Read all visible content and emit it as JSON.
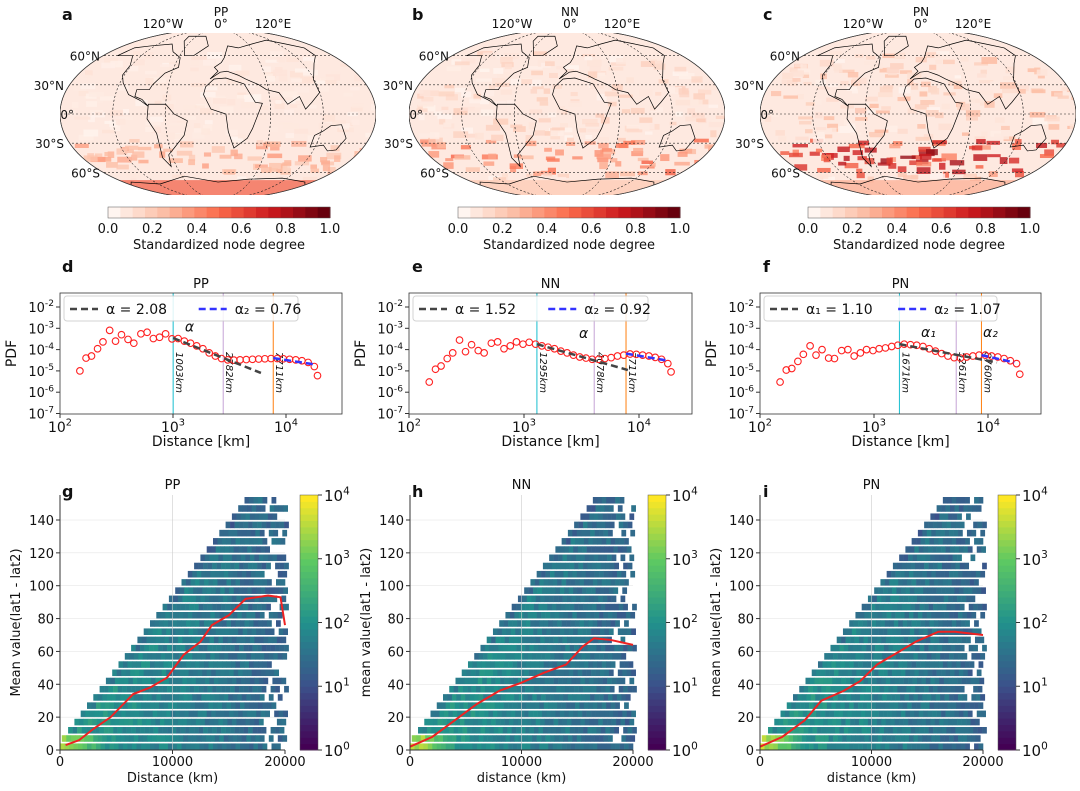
{
  "panel_letters": [
    "a",
    "b",
    "c",
    "d",
    "e",
    "f",
    "g",
    "h",
    "i"
  ],
  "maps": [
    {
      "title": "PP",
      "intensity": 0.15,
      "southern_band": 0.25,
      "antarctic": 0.55
    },
    {
      "title": "NN",
      "intensity": 0.3,
      "southern_band": 0.35,
      "antarctic": 0.2
    },
    {
      "title": "PN",
      "intensity": 0.45,
      "southern_band": 0.6,
      "antarctic": 0.3
    }
  ],
  "map_labels": {
    "lon": [
      "120°W",
      "0°",
      "120°E"
    ],
    "lat": [
      "60°N",
      "30°N",
      "0°",
      "30°S",
      "60°S"
    ],
    "colorbar_ticks": [
      "0.0",
      "0.2",
      "0.4",
      "0.6",
      "0.8",
      "1.0"
    ],
    "colorbar_label": "Standardized node degree",
    "colormap": "Reds"
  },
  "chart_data": [
    {
      "type": "scatter",
      "title": "PP",
      "xlabel": "Distance [km]",
      "ylabel": "PDF",
      "xscale": "log",
      "yscale": "log",
      "xlim": [
        100,
        31623
      ],
      "ylim": [
        1e-07,
        0.045
      ],
      "xticks": [
        "10^2",
        "10^3",
        "10^4"
      ],
      "yticks": [
        "10^-2",
        "10^-3",
        "10^-4",
        "10^-5",
        "10^-6",
        "10^-7"
      ],
      "points": [
        [
          150,
          1e-05
        ],
        [
          170,
          4e-05
        ],
        [
          190,
          5e-05
        ],
        [
          215,
          0.00011
        ],
        [
          240,
          0.00023
        ],
        [
          275,
          0.0008
        ],
        [
          310,
          0.00025
        ],
        [
          350,
          0.0005
        ],
        [
          400,
          0.0003
        ],
        [
          450,
          0.0002
        ],
        [
          520,
          0.00055
        ],
        [
          590,
          0.00065
        ],
        [
          670,
          0.00033
        ],
        [
          760,
          0.00038
        ],
        [
          860,
          0.00055
        ],
        [
          980,
          0.00032
        ],
        [
          1110,
          0.00033
        ],
        [
          1260,
          0.00025
        ],
        [
          1430,
          0.0002
        ],
        [
          1620,
          0.00015
        ],
        [
          1840,
          0.00011
        ],
        [
          2090,
          7e-05
        ],
        [
          2370,
          5e-05
        ],
        [
          2690,
          3.8e-05
        ],
        [
          3050,
          3.3e-05
        ],
        [
          3460,
          3.2e-05
        ],
        [
          3920,
          3.3e-05
        ],
        [
          4450,
          3.4e-05
        ],
        [
          5050,
          3.5e-05
        ],
        [
          5730,
          3.6e-05
        ],
        [
          6500,
          3.7e-05
        ],
        [
          7370,
          3.8e-05
        ],
        [
          8360,
          3.8e-05
        ],
        [
          9480,
          3.7e-05
        ],
        [
          10760,
          3.5e-05
        ],
        [
          12200,
          3.3e-05
        ],
        [
          13840,
          3e-05
        ],
        [
          15700,
          2.5e-05
        ],
        [
          17810,
          1.6e-05
        ],
        [
          19000,
          6e-06
        ]
      ],
      "fits": [
        {
          "label": "α = 2.08",
          "color": "#444444",
          "from": [
            1003,
            0.00035
          ],
          "to": [
            6000,
            8e-06
          ]
        },
        {
          "label": "α₂ = 0.76",
          "color": "#3333ff",
          "from": [
            7711,
            4e-05
          ],
          "to": [
            18000,
            2e-05
          ]
        }
      ],
      "annotations": [
        {
          "text": "α",
          "color": "#222222",
          "at": [
            1400,
            0.0007
          ]
        }
      ],
      "vlines": [
        {
          "x": 1003,
          "label": "1003km",
          "color": "#17becf"
        },
        {
          "x": 2782,
          "label": "2782km",
          "color": "#c5a3d6"
        },
        {
          "x": 7711,
          "label": "7711km",
          "color": "#ff7f0e"
        }
      ]
    },
    {
      "type": "scatter",
      "title": "NN",
      "xlabel": "Distance [km]",
      "ylabel": "PDF",
      "xscale": "log",
      "yscale": "log",
      "xlim": [
        100,
        31623
      ],
      "ylim": [
        1e-07,
        0.045
      ],
      "xticks": [
        "10^2",
        "10^3",
        "10^4"
      ],
      "yticks": [
        "10^-2",
        "10^-3",
        "10^-4",
        "10^-5",
        "10^-6",
        "10^-7"
      ],
      "points": [
        [
          150,
          3e-06
        ],
        [
          170,
          1.2e-05
        ],
        [
          190,
          1.7e-05
        ],
        [
          215,
          3.8e-05
        ],
        [
          240,
          7e-05
        ],
        [
          275,
          0.00028
        ],
        [
          310,
          8e-05
        ],
        [
          350,
          0.00017
        ],
        [
          400,
          9e-05
        ],
        [
          450,
          7e-05
        ],
        [
          520,
          0.0002
        ],
        [
          590,
          0.00023
        ],
        [
          670,
          0.00011
        ],
        [
          760,
          0.00015
        ],
        [
          860,
          0.00023
        ],
        [
          980,
          0.00018
        ],
        [
          1110,
          0.00022
        ],
        [
          1260,
          0.00018
        ],
        [
          1430,
          0.00015
        ],
        [
          1620,
          0.00013
        ],
        [
          1840,
          0.00011
        ],
        [
          2090,
          8.5e-05
        ],
        [
          2370,
          7e-05
        ],
        [
          2690,
          5.5e-05
        ],
        [
          3050,
          4.5e-05
        ],
        [
          3460,
          4e-05
        ],
        [
          3920,
          3.5e-05
        ],
        [
          4450,
          3.5e-05
        ],
        [
          5050,
          3.8e-05
        ],
        [
          5730,
          4.2e-05
        ],
        [
          6500,
          5e-05
        ],
        [
          7370,
          5.5e-05
        ],
        [
          8360,
          6.2e-05
        ],
        [
          9480,
          6e-05
        ],
        [
          10760,
          5.5e-05
        ],
        [
          12200,
          5e-05
        ],
        [
          13840,
          4.3e-05
        ],
        [
          15700,
          3.5e-05
        ],
        [
          17810,
          2.2e-05
        ],
        [
          19000,
          9e-06
        ]
      ],
      "fits": [
        {
          "label": "α = 1.52",
          "color": "#444444",
          "from": [
            1295,
            0.00018
          ],
          "to": [
            8000,
            1.1e-05
          ]
        },
        {
          "label": "α₂ = 0.92",
          "color": "#3333ff",
          "from": [
            7711,
            6.5e-05
          ],
          "to": [
            18000,
            3e-05
          ]
        }
      ],
      "annotations": [
        {
          "text": "α",
          "color": "#222222",
          "at": [
            3300,
            0.00035
          ]
        }
      ],
      "vlines": [
        {
          "x": 1295,
          "label": "1295km",
          "color": "#17becf"
        },
        {
          "x": 4078,
          "label": "4078km",
          "color": "#c5a3d6"
        },
        {
          "x": 7711,
          "label": "7711km",
          "color": "#ff7f0e"
        }
      ]
    },
    {
      "type": "scatter",
      "title": "PN",
      "xlabel": "Distance [km]",
      "ylabel": "PDF",
      "xscale": "log",
      "yscale": "log",
      "xlim": [
        100,
        31623
      ],
      "ylim": [
        1e-07,
        0.045
      ],
      "xticks": [
        "10^2",
        "10^3",
        "10^4"
      ],
      "yticks": [
        "10^-2",
        "10^-3",
        "10^-4",
        "10^-5",
        "10^-6",
        "10^-7"
      ],
      "points": [
        [
          150,
          3e-06
        ],
        [
          170,
          1.1e-05
        ],
        [
          190,
          1.3e-05
        ],
        [
          215,
          2.8e-05
        ],
        [
          240,
          6e-05
        ],
        [
          275,
          0.00015
        ],
        [
          310,
          5.5e-05
        ],
        [
          350,
          0.0001
        ],
        [
          400,
          4e-05
        ],
        [
          450,
          3.8e-05
        ],
        [
          520,
          9e-05
        ],
        [
          590,
          0.0001
        ],
        [
          670,
          5e-05
        ],
        [
          760,
          7e-05
        ],
        [
          860,
          0.0001
        ],
        [
          980,
          9e-05
        ],
        [
          1110,
          0.00011
        ],
        [
          1260,
          0.00012
        ],
        [
          1430,
          0.00014
        ],
        [
          1620,
          0.00016
        ],
        [
          1840,
          0.00018
        ],
        [
          2090,
          0.00017
        ],
        [
          2370,
          0.00016
        ],
        [
          2690,
          0.00014
        ],
        [
          3050,
          0.00011
        ],
        [
          3460,
          8.5e-05
        ],
        [
          3920,
          6.5e-05
        ],
        [
          4450,
          5e-05
        ],
        [
          5050,
          4.2e-05
        ],
        [
          5730,
          4e-05
        ],
        [
          6500,
          4.5e-05
        ],
        [
          7370,
          5e-05
        ],
        [
          8360,
          5.5e-05
        ],
        [
          9480,
          5.5e-05
        ],
        [
          10760,
          5e-05
        ],
        [
          12200,
          4.5e-05
        ],
        [
          13840,
          3.8e-05
        ],
        [
          15700,
          3e-05
        ],
        [
          17810,
          2.2e-05
        ],
        [
          19000,
          7e-06
        ]
      ],
      "fits": [
        {
          "label": "α₁ = 1.10",
          "color": "#444444",
          "from": [
            1671,
            0.00018
          ],
          "to": [
            12000,
            2.5e-05
          ]
        },
        {
          "label": "α₂ = 1.07",
          "color": "#3333ff",
          "from": [
            8760,
            5.5e-05
          ],
          "to": [
            17000,
            2.5e-05
          ]
        }
      ],
      "annotations": [
        {
          "text": "α₁",
          "color": "#222222",
          "at": [
            3000,
            0.0004
          ]
        },
        {
          "text": "α₂",
          "color": "#2222ee",
          "at": [
            10500,
            0.0004
          ]
        }
      ],
      "vlines": [
        {
          "x": 1671,
          "label": "1671km",
          "color": "#17becf"
        },
        {
          "x": 5261,
          "label": "5261km",
          "color": "#c5a3d6"
        },
        {
          "x": 8760,
          "label": "8760km",
          "color": "#ff7f0e"
        }
      ]
    },
    {
      "type": "heatmap",
      "title": "PP",
      "xlabel": "Distance (km)",
      "ylabel": "Mean value(lat1 - lat2)",
      "xlim": [
        0,
        20000
      ],
      "ylim": [
        0,
        155
      ],
      "xticks": [
        "0",
        "10000",
        "20000"
      ],
      "yticks": [
        "0",
        "20",
        "40",
        "60",
        "80",
        "100",
        "120",
        "140"
      ],
      "colorbar": {
        "scale": "log",
        "range": [
          1,
          10000
        ],
        "ticks": [
          "10^0",
          "10^1",
          "10^2",
          "10^3",
          "10^4"
        ],
        "colormap": "viridis"
      },
      "line": {
        "color": "#ee2222",
        "points": [
          [
            500,
            3
          ],
          [
            1700,
            6
          ],
          [
            3000,
            13
          ],
          [
            4500,
            20
          ],
          [
            6500,
            34
          ],
          [
            8000,
            38
          ],
          [
            9500,
            44
          ],
          [
            11000,
            58
          ],
          [
            12500,
            66
          ],
          [
            13500,
            76
          ],
          [
            15000,
            82
          ],
          [
            16500,
            92
          ],
          [
            18500,
            94
          ],
          [
            19600,
            93
          ],
          [
            20000,
            76
          ]
        ]
      }
    },
    {
      "type": "heatmap",
      "title": "NN",
      "xlabel": "distance (km)",
      "ylabel": "mean value(lat1 - lat2)",
      "xlim": [
        0,
        20000
      ],
      "ylim": [
        0,
        155
      ],
      "xticks": [
        "0",
        "10000",
        "20000"
      ],
      "yticks": [
        "0",
        "20",
        "40",
        "60",
        "80",
        "100",
        "120",
        "140"
      ],
      "colorbar": {
        "scale": "log",
        "range": [
          1,
          10000
        ],
        "ticks": [
          "10^0",
          "10^1",
          "10^2",
          "10^3",
          "10^4"
        ],
        "colormap": "viridis"
      },
      "line": {
        "color": "#ee2222",
        "points": [
          [
            0,
            2
          ],
          [
            2000,
            8
          ],
          [
            4000,
            18
          ],
          [
            6000,
            28
          ],
          [
            8000,
            36
          ],
          [
            10000,
            41
          ],
          [
            12000,
            47
          ],
          [
            14000,
            52
          ],
          [
            15500,
            63
          ],
          [
            16500,
            68
          ],
          [
            18000,
            67
          ],
          [
            20000,
            64
          ]
        ]
      }
    },
    {
      "type": "heatmap",
      "title": "PN",
      "xlabel": "distance (km)",
      "ylabel": "mean value(lat1 - lat2)",
      "xlim": [
        0,
        20000
      ],
      "ylim": [
        0,
        155
      ],
      "xticks": [
        "0",
        "10000",
        "20000"
      ],
      "yticks": [
        "0",
        "20",
        "40",
        "60",
        "80",
        "100",
        "120",
        "140"
      ],
      "colorbar": {
        "scale": "log",
        "range": [
          1,
          10000
        ],
        "ticks": [
          "10^0",
          "10^1",
          "10^2",
          "10^3",
          "10^4"
        ],
        "colormap": "viridis"
      },
      "line": {
        "color": "#ee2222",
        "points": [
          [
            0,
            2
          ],
          [
            2000,
            8
          ],
          [
            4000,
            18
          ],
          [
            5500,
            30
          ],
          [
            7500,
            36
          ],
          [
            9000,
            42
          ],
          [
            10500,
            52
          ],
          [
            12000,
            58
          ],
          [
            14000,
            66
          ],
          [
            16000,
            72
          ],
          [
            17500,
            72
          ],
          [
            20000,
            70
          ]
        ]
      }
    }
  ]
}
